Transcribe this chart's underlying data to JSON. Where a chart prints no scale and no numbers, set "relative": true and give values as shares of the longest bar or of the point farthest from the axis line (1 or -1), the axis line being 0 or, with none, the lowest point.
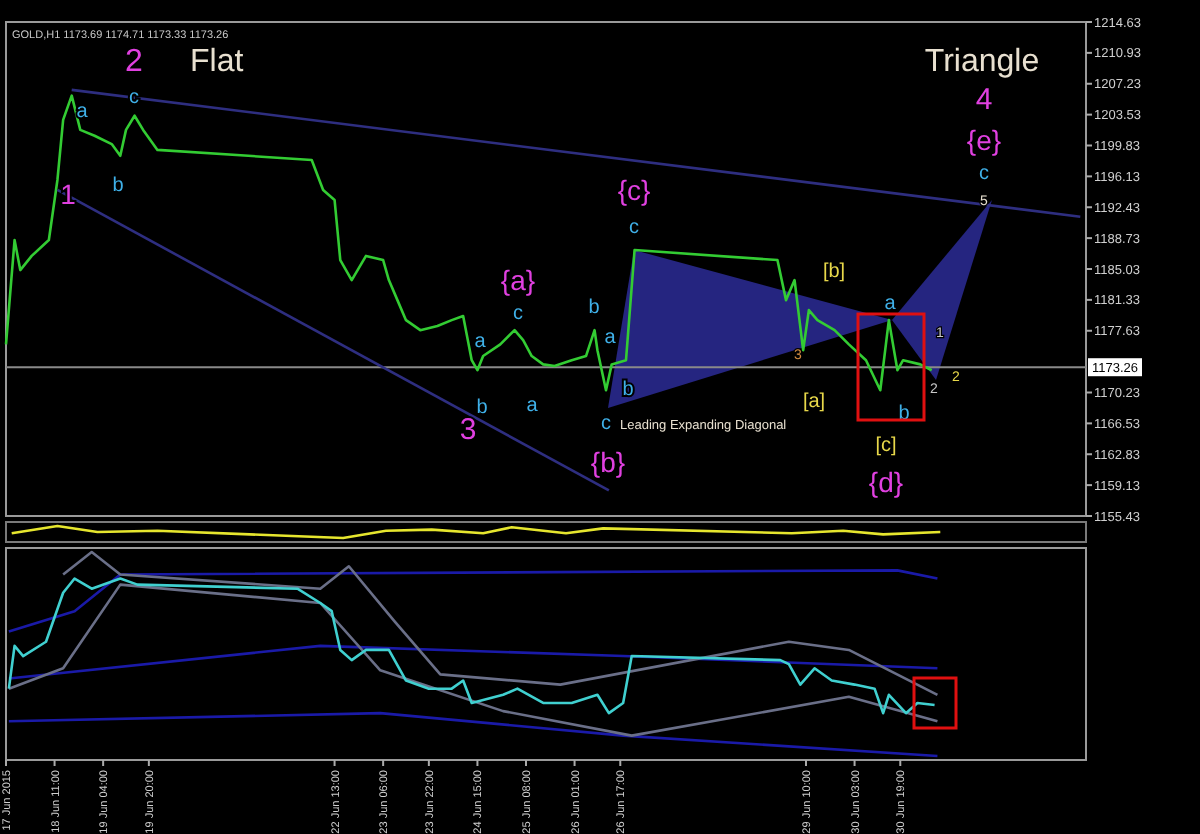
{
  "chart_data": [
    {
      "type": "line",
      "xlim": [
        "2015-06-17T18:00",
        "2015-07-03T12:00"
      ],
      "ylim": [
        1155.43,
        1214.63
      ],
      "yticks": [
        1155.43,
        1159.13,
        1162.83,
        1166.53,
        1170.23,
        1177.63,
        1181.33,
        1185.03,
        1188.73,
        1192.43,
        1196.13,
        1199.83,
        1203.53,
        1207.23,
        1210.93,
        1214.63
      ],
      "tick_labels": "y",
      "series": [
        {
          "color": "#33cc33",
          "x": [
            "2015-06-17T18:00",
            "2015-06-17T21:00",
            "2015-06-17T23:00",
            "2015-06-18T03:00",
            "2015-06-18T09:00",
            "2015-06-18T12:00",
            "2015-06-18T14:00",
            "2015-06-18T17:00",
            "2015-06-18T20:00",
            "2015-06-19T01:00",
            "2015-06-19T07:00",
            "2015-06-19T10:00",
            "2015-06-19T12:00",
            "2015-06-19T15:00",
            "2015-06-19T18:00",
            "2015-06-19T23:00",
            "2015-06-22T05:00",
            "2015-06-22T09:00",
            "2015-06-22T13:00",
            "2015-06-22T15:00",
            "2015-06-22T19:00",
            "2015-06-23T00:00",
            "2015-06-23T06:00",
            "2015-06-23T08:00",
            "2015-06-23T11:00",
            "2015-06-23T14:00",
            "2015-06-23T19:00",
            "2015-06-24T01:00",
            "2015-06-24T06:00",
            "2015-06-24T10:00",
            "2015-06-24T13:00",
            "2015-06-24T15:00",
            "2015-06-24T17:00",
            "2015-06-24T23:00",
            "2015-06-25T04:00",
            "2015-06-25T07:00",
            "2015-06-25T10:00",
            "2015-06-25T14:00",
            "2015-06-25T18:00",
            "2015-06-26T00:00",
            "2015-06-26T05:00",
            "2015-06-26T08:00",
            "2015-06-26T09:00",
            "2015-06-26T12:00",
            "2015-06-26T14:00",
            "2015-06-26T19:00",
            "2015-06-26T22:00",
            "2015-06-29T00:00",
            "2015-06-29T03:00",
            "2015-06-29T06:00",
            "2015-06-29T09:00",
            "2015-06-29T11:00",
            "2015-06-29T14:00",
            "2015-06-29T20:00",
            "2015-06-30T01:00",
            "2015-06-30T07:00",
            "2015-06-30T12:00",
            "2015-06-30T15:00",
            "2015-06-30T18:00",
            "2015-06-30T20:00",
            "2015-07-01T02:00",
            "2015-07-01T06:00"
          ],
          "values": [
            1176.0,
            1188.5,
            1184.9,
            1186.6,
            1188.5,
            1195.7,
            1202.9,
            1205.8,
            1201.7,
            1201.0,
            1200.0,
            1198.6,
            1201.7,
            1203.4,
            1201.7,
            1199.3,
            1198.1,
            1194.5,
            1193.3,
            1186.1,
            1183.7,
            1186.6,
            1186.1,
            1183.7,
            1181.3,
            1178.9,
            1177.7,
            1178.2,
            1178.9,
            1179.4,
            1174.1,
            1172.9,
            1174.6,
            1176.0,
            1177.7,
            1176.5,
            1174.6,
            1173.6,
            1173.4,
            1174.1,
            1174.6,
            1177.7,
            1175.3,
            1170.5,
            1173.6,
            1174.1,
            1187.3,
            1186.1,
            1181.3,
            1183.7,
            1175.3,
            1180.1,
            1178.9,
            1177.7,
            1176.0,
            1174.1,
            1170.5,
            1178.9,
            1172.9,
            1174.1,
            1173.6,
            1172.9
          ]
        },
        {
          "color": "#2e2e80",
          "x": [
            "2015-06-18T17:00",
            "2015-07-03T10:00"
          ],
          "values": [
            1206.5,
            1191.3
          ]
        },
        {
          "color": "#2e2e80",
          "x": [
            "2015-06-18T12:00",
            "2015-06-26T13:00"
          ],
          "values": [
            1194.5,
            1158.5
          ]
        }
      ],
      "ref_lines": [
        {
          "axis": "y",
          "value": 1173.26,
          "label": "1173.26",
          "color": "#8a8a8a"
        }
      ],
      "annotations": [
        "GOLD,H1 1173.69 1174.71 1173.33 1173.26",
        "2",
        "Flat",
        "1",
        "a",
        "b",
        "c",
        "3",
        "a",
        "b",
        "{a}",
        "c",
        "a",
        "b",
        "a",
        "b",
        "c",
        "{b}",
        "{c}",
        "c",
        "[b]",
        "[a]",
        "3",
        "Leading Expanding Diagonal",
        "a",
        "b",
        "[c]",
        "{d}",
        "1",
        "2",
        "2",
        "Triangle",
        "4",
        "{e}",
        "c",
        "5"
      ]
    },
    {
      "type": "line",
      "relative": true,
      "xlim": [
        "2015-06-17T18:00",
        "2015-07-03T12:00"
      ],
      "tick_labels": false,
      "series": [
        {
          "color": "#e6e62e",
          "x": [
            "2015-06-17T20:00",
            "2015-06-18T12:00",
            "2015-06-19T02:00",
            "2015-06-19T23:00",
            "2015-06-22T16:00",
            "2015-06-23T07:00",
            "2015-06-23T23:00",
            "2015-06-24T17:00",
            "2015-06-25T03:00",
            "2015-06-25T22:00",
            "2015-06-26T11:00",
            "2015-06-29T05:00",
            "2015-06-29T23:00",
            "2015-06-30T13:00",
            "2015-07-01T09:00"
          ],
          "values": [
            0.4,
            1.0,
            0.5,
            0.6,
            0,
            0.6,
            0.7,
            0.4,
            0.9,
            0.4,
            0.8,
            0.4,
            0.6,
            0.3,
            0.5
          ]
        }
      ]
    },
    {
      "type": "line",
      "relative": true,
      "xlim": [
        "2015-06-17T18:00",
        "2015-07-03T12:00"
      ],
      "xticks": [
        {
          "value": "2015-06-17T18:00",
          "label": "17 Jun 2015"
        },
        {
          "value": "2015-06-18T11:00",
          "label": "18 Jun 11:00"
        },
        {
          "value": "2015-06-19T04:00",
          "label": "19 Jun 04:00"
        },
        {
          "value": "2015-06-19T20:00",
          "label": "19 Jun 20:00"
        },
        {
          "value": "2015-06-22T13:00",
          "label": "22 Jun 13:00"
        },
        {
          "value": "2015-06-23T06:00",
          "label": "23 Jun 06:00"
        },
        {
          "value": "2015-06-23T22:00",
          "label": "23 Jun 22:00"
        },
        {
          "value": "2015-06-24T15:00",
          "label": "24 Jun 15:00"
        },
        {
          "value": "2015-06-25T08:00",
          "label": "25 Jun 08:00"
        },
        {
          "value": "2015-06-26T01:00",
          "label": "26 Jun 01:00"
        },
        {
          "value": "2015-06-26T17:00",
          "label": "26 Jun 17:00"
        },
        {
          "value": "2015-06-29T10:00",
          "label": "29 Jun 10:00"
        },
        {
          "value": "2015-06-30T03:00",
          "label": "30 Jun 03:00"
        },
        {
          "value": "2015-06-30T19:00",
          "label": "30 Jun 19:00"
        }
      ],
      "tick_labels": "x",
      "series": [
        {
          "color": "#1a1aa8",
          "x": [
            "2015-06-17T19:00",
            "2015-06-18T18:00",
            "2015-06-19T10:00",
            "2015-06-30T18:00",
            "2015-07-01T08:00"
          ],
          "values": [
            0.61,
            0.71,
            0.89,
            0.91,
            0.87
          ]
        },
        {
          "color": "#1a1aa8",
          "x": [
            "2015-06-17T19:00",
            "2015-06-22T08:00",
            "2015-06-26T18:00",
            "2015-07-01T08:00"
          ],
          "values": [
            0.38,
            0.54,
            0.49,
            0.43
          ]
        },
        {
          "color": "#1a1aa8",
          "x": [
            "2015-06-17T19:00",
            "2015-06-23T05:00",
            "2015-06-26T18:00",
            "2015-07-01T08:00"
          ],
          "values": [
            0.17,
            0.21,
            0.1,
            0.0
          ]
        },
        {
          "color": "#6a6f88",
          "x": [
            "2015-06-18T14:00",
            "2015-06-19T00:00",
            "2015-06-19T10:00",
            "2015-06-22T08:00",
            "2015-06-22T18:00",
            "2015-06-23T10:00",
            "2015-06-24T02:00",
            "2015-06-25T20:00",
            "2015-06-29T04:00",
            "2015-06-30T01:00",
            "2015-07-01T08:00"
          ],
          "values": [
            0.89,
            1.0,
            0.89,
            0.82,
            0.93,
            0.66,
            0.4,
            0.35,
            0.56,
            0.52,
            0.3
          ]
        },
        {
          "color": "#6a6f88",
          "x": [
            "2015-06-17T19:00",
            "2015-06-18T14:00",
            "2015-06-19T10:00",
            "2015-06-22T08:00",
            "2015-06-23T05:00",
            "2015-06-25T00:00",
            "2015-06-26T21:00",
            "2015-06-30T01:00",
            "2015-07-01T08:00"
          ],
          "values": [
            0.33,
            0.43,
            0.84,
            0.75,
            0.42,
            0.22,
            0.1,
            0.29,
            0.17
          ]
        },
        {
          "color": "#40d0d0",
          "x": [
            "2015-06-17T19:00",
            "2015-06-17T21:00",
            "2015-06-18T00:00",
            "2015-06-18T08:00",
            "2015-06-18T14:00",
            "2015-06-18T18:00",
            "2015-06-19T00:00",
            "2015-06-19T10:00",
            "2015-06-19T16:00",
            "2015-06-22T00:00",
            "2015-06-22T08:00",
            "2015-06-22T12:00",
            "2015-06-22T15:00",
            "2015-06-22T19:00",
            "2015-06-23T00:00",
            "2015-06-23T08:00",
            "2015-06-23T14:00",
            "2015-06-23T22:00",
            "2015-06-24T06:00",
            "2015-06-24T10:00",
            "2015-06-24T13:00",
            "2015-06-25T00:00",
            "2015-06-25T05:00",
            "2015-06-25T14:00",
            "2015-06-26T00:00",
            "2015-06-26T09:00",
            "2015-06-26T13:00",
            "2015-06-26T18:00",
            "2015-06-26T21:00",
            "2015-06-29T01:00",
            "2015-06-29T04:00",
            "2015-06-29T08:00",
            "2015-06-29T13:00",
            "2015-06-29T19:00",
            "2015-06-30T03:00",
            "2015-06-30T10:00",
            "2015-06-30T13:00",
            "2015-06-30T15:00",
            "2015-06-30T21:00",
            "2015-07-01T01:00",
            "2015-07-01T07:00"
          ],
          "values": [
            0.33,
            0.54,
            0.49,
            0.56,
            0.8,
            0.87,
            0.82,
            0.87,
            0.84,
            0.82,
            0.75,
            0.71,
            0.52,
            0.47,
            0.52,
            0.52,
            0.37,
            0.33,
            0.33,
            0.37,
            0.26,
            0.3,
            0.33,
            0.26,
            0.26,
            0.3,
            0.21,
            0.26,
            0.49,
            0.47,
            0.45,
            0.35,
            0.43,
            0.37,
            0.35,
            0.33,
            0.21,
            0.3,
            0.21,
            0.26,
            0.25
          ]
        }
      ]
    }
  ]
}
